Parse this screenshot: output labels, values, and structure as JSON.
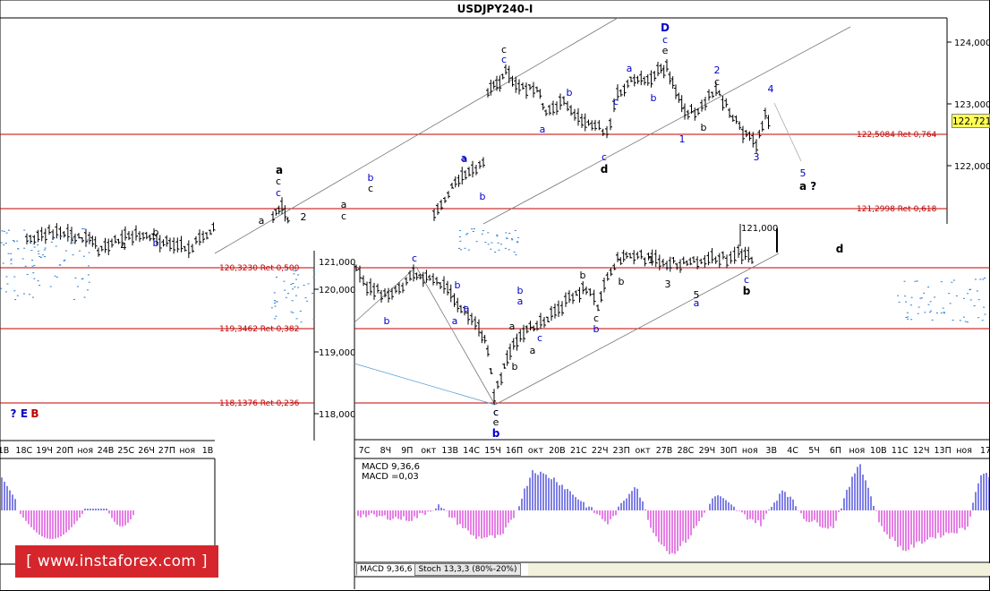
{
  "chart_data": [
    {
      "type": "candlestick",
      "title": "USDJPY240-I",
      "y_ticks": [
        "124,000",
        "123,000",
        "122,000",
        "121,000"
      ],
      "ylim": [
        121.0,
        124.4
      ],
      "current_price": "122,721",
      "fib_levels": [
        {
          "label": "122,5084 Ret 0,764",
          "price": 122.5084
        },
        {
          "label": "121,2998 Ret 0,618",
          "price": 121.2998
        }
      ],
      "wave_labels": [
        {
          "text": "D",
          "color": "#0000cc",
          "bold": true
        },
        {
          "text": "c",
          "color": "#0000cc"
        },
        {
          "text": "e",
          "color": "#000000"
        },
        {
          "text": "c",
          "color": "#000000"
        },
        {
          "text": "c",
          "color": "#0000cc"
        },
        {
          "text": "a",
          "color": "#000000"
        },
        {
          "text": "c",
          "color": "#0000cc"
        },
        {
          "text": "b",
          "color": "#0000cc"
        },
        {
          "text": "a",
          "color": "#0000cc"
        },
        {
          "text": "b",
          "color": "#0000cc"
        },
        {
          "text": "a",
          "color": "#0000cc"
        },
        {
          "text": "c",
          "color": "#0000cc"
        },
        {
          "text": "d",
          "color": "#000000"
        },
        {
          "text": "a",
          "color": "#0000cc"
        },
        {
          "text": "b",
          "color": "#0000cc"
        },
        {
          "text": "b",
          "color": "#0000cc"
        },
        {
          "text": "2",
          "color": "#0000cc"
        },
        {
          "text": "c",
          "color": "#000000"
        },
        {
          "text": "b",
          "color": "#000000"
        },
        {
          "text": "1",
          "color": "#0000cc"
        },
        {
          "text": "3",
          "color": "#0000cc"
        },
        {
          "text": "4",
          "color": "#0000cc"
        },
        {
          "text": "5",
          "color": "#0000cc"
        },
        {
          "text": "a ?",
          "color": "#000000"
        },
        {
          "text": "a",
          "color": "#000000"
        },
        {
          "text": "c",
          "color": "#000000"
        },
        {
          "text": "c",
          "color": "#0000cc"
        },
        {
          "text": "a",
          "color": "#000000"
        },
        {
          "text": "c",
          "color": "#000000"
        },
        {
          "text": "b",
          "color": "#0000cc"
        },
        {
          "text": "c",
          "color": "#000000"
        },
        {
          "text": "a",
          "color": "#000000"
        },
        {
          "text": "2",
          "color": "#000000"
        },
        {
          "text": "4",
          "color": "#000000"
        },
        {
          "text": "b",
          "color": "#000000"
        }
      ]
    },
    {
      "type": "candlestick",
      "y_ticks": [
        "121,000",
        "120,000",
        "119,000",
        "118,000"
      ],
      "fib_levels": [
        {
          "label": "120,3230 Ret 0,500",
          "price": 120.323
        },
        {
          "label": "119,3462 Ret 0,382",
          "price": 119.3462
        },
        {
          "label": "118,1376 Ret 0,236",
          "price": 118.1376
        }
      ],
      "x_ticks_left": [
        "1В",
        "18С",
        "19Ч",
        "20П",
        "ноя",
        "24В",
        "25С",
        "26Ч",
        "27П",
        "ноя",
        "1В"
      ],
      "x_ticks_right": [
        "7С",
        "8Ч",
        "9П",
        "окт",
        "13В",
        "14С",
        "15Ч",
        "16П",
        "окт",
        "20В",
        "21С",
        "22Ч",
        "23П",
        "окт",
        "27В",
        "28С",
        "29Ч",
        "30П",
        "ноя",
        "3В",
        "4С",
        "5Ч",
        "6П",
        "ноя",
        "10В",
        "11С",
        "12Ч",
        "13П",
        "ноя",
        "17"
      ],
      "wave_labels": [
        {
          "text": "c",
          "color": "#0000cc"
        },
        {
          "text": "b",
          "color": "#0000cc"
        },
        {
          "text": "a",
          "color": "#0000cc"
        },
        {
          "text": "b",
          "color": "#0000cc"
        },
        {
          "text": "a",
          "color": "#0000cc"
        },
        {
          "text": "c",
          "color": "#0000cc"
        },
        {
          "text": "e",
          "color": "#000000"
        },
        {
          "text": "b",
          "color": "#0000cc"
        },
        {
          "text": "c",
          "color": "#000000"
        },
        {
          "text": "b",
          "color": "#000000"
        },
        {
          "text": "a",
          "color": "#000000"
        },
        {
          "text": "a",
          "color": "#0000cc"
        },
        {
          "text": "b",
          "color": "#0000cc"
        },
        {
          "text": "c",
          "color": "#0000cc"
        },
        {
          "text": "a",
          "color": "#000000"
        },
        {
          "text": "b",
          "color": "#000000"
        },
        {
          "text": "c",
          "color": "#000000"
        },
        {
          "text": "b",
          "color": "#0000cc"
        },
        {
          "text": "b",
          "color": "#000000"
        },
        {
          "text": "1",
          "color": "#000000"
        },
        {
          "text": "3",
          "color": "#000000"
        },
        {
          "text": "5",
          "color": "#000000"
        },
        {
          "text": "a",
          "color": "#0000cc"
        },
        {
          "text": "c",
          "color": "#0000cc"
        },
        {
          "text": "b",
          "color": "#000000"
        },
        {
          "text": "d",
          "color": "#000000"
        },
        {
          "text": "?",
          "color": "#0000cc"
        },
        {
          "text": "E",
          "color": "#0000cc"
        },
        {
          "text": "B",
          "color": "#c00000"
        }
      ]
    }
  ],
  "macd": {
    "label": "MACD 9,36,6",
    "value_label": "MACD =0,03",
    "colors": {
      "positive": "#0000cc",
      "negative": "#cc00cc"
    }
  },
  "tabs": [
    "MACD 9,36,6",
    "Stoch 13,3,3 (80%-20%)"
  ],
  "logo": {
    "text": "[ www.instaforex.com ]"
  }
}
